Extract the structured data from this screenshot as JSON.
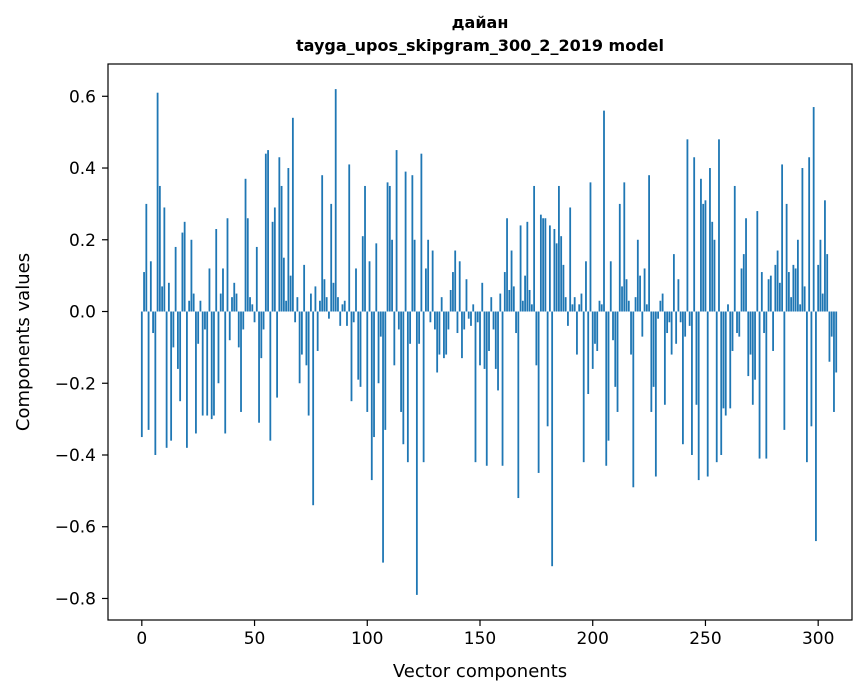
{
  "chart_data": {
    "type": "bar",
    "title_line1": "дайан",
    "title_line2": "tayga_upos_skipgram_300_2_2019 model",
    "xlabel": "Vector components",
    "ylabel": "Components values",
    "xlim": [
      -15,
      315
    ],
    "ylim": [
      -0.86,
      0.69
    ],
    "xticks": [
      0,
      50,
      100,
      150,
      200,
      250,
      300
    ],
    "xtick_labels": [
      "0",
      "50",
      "100",
      "150",
      "200",
      "250",
      "300"
    ],
    "yticks": [
      0.6,
      0.4,
      0.2,
      0.0,
      -0.2,
      -0.4,
      -0.6,
      -0.8
    ],
    "ytick_labels": [
      "0.6",
      "0.4",
      "0.2",
      "0.0",
      "−0.2",
      "−0.4",
      "−0.6",
      "−0.8"
    ],
    "bar_color": "#1f77b4",
    "values": [
      -0.35,
      0.11,
      0.3,
      -0.33,
      0.14,
      -0.06,
      -0.4,
      0.61,
      0.35,
      0.07,
      0.29,
      -0.38,
      0.08,
      -0.36,
      -0.1,
      0.18,
      -0.16,
      -0.25,
      0.22,
      0.25,
      -0.38,
      0.03,
      0.2,
      0.05,
      -0.34,
      -0.09,
      0.03,
      -0.29,
      -0.05,
      -0.29,
      0.12,
      -0.3,
      -0.29,
      0.23,
      -0.2,
      0.05,
      0.12,
      -0.34,
      0.26,
      -0.08,
      0.04,
      0.08,
      0.05,
      -0.1,
      -0.28,
      -0.05,
      0.37,
      0.26,
      0.04,
      0.02,
      -0.03,
      0.18,
      -0.31,
      -0.13,
      -0.05,
      0.44,
      0.45,
      -0.36,
      0.25,
      0.29,
      -0.24,
      0.43,
      0.35,
      0.15,
      0.03,
      0.4,
      0.1,
      0.54,
      -0.03,
      0.04,
      -0.2,
      -0.12,
      0.13,
      -0.15,
      -0.29,
      0.05,
      -0.54,
      0.07,
      -0.11,
      0.03,
      0.38,
      0.09,
      0.04,
      -0.02,
      0.3,
      0.08,
      0.62,
      0.04,
      -0.04,
      0.02,
      0.03,
      -0.04,
      0.41,
      -0.25,
      -0.03,
      0.12,
      -0.19,
      -0.21,
      0.21,
      0.35,
      -0.28,
      0.14,
      -0.47,
      -0.35,
      0.19,
      -0.2,
      -0.07,
      -0.7,
      -0.33,
      0.36,
      0.35,
      0.2,
      -0.15,
      0.45,
      -0.05,
      -0.28,
      -0.37,
      0.39,
      -0.42,
      -0.09,
      0.38,
      0.2,
      -0.79,
      -0.09,
      0.44,
      -0.42,
      0.12,
      0.2,
      -0.03,
      0.17,
      -0.05,
      -0.17,
      -0.12,
      0.04,
      -0.13,
      -0.12,
      -0.05,
      0.06,
      0.11,
      0.17,
      -0.06,
      0.14,
      -0.13,
      -0.05,
      0.09,
      -0.02,
      -0.04,
      0.02,
      -0.42,
      -0.03,
      -0.15,
      0.08,
      -0.16,
      -0.43,
      -0.11,
      0.04,
      -0.05,
      -0.16,
      -0.22,
      0.05,
      -0.43,
      0.11,
      0.26,
      0.06,
      0.17,
      0.07,
      -0.06,
      -0.52,
      0.24,
      0.03,
      0.1,
      0.25,
      0.06,
      0.02,
      0.35,
      -0.15,
      -0.45,
      0.27,
      0.26,
      0.26,
      -0.32,
      0.24,
      -0.71,
      0.23,
      0.19,
      0.35,
      0.21,
      0.13,
      0.04,
      -0.04,
      0.29,
      0.02,
      0.04,
      -0.12,
      0.02,
      0.05,
      -0.42,
      0.14,
      -0.23,
      0.36,
      -0.16,
      -0.09,
      -0.11,
      0.03,
      0.02,
      0.56,
      -0.43,
      -0.36,
      0.14,
      -0.08,
      -0.21,
      -0.28,
      0.3,
      0.07,
      0.36,
      0.09,
      0.03,
      -0.12,
      -0.49,
      0.04,
      0.2,
      0.1,
      -0.07,
      0.12,
      0.02,
      0.38,
      -0.28,
      -0.21,
      -0.46,
      -0.02,
      0.03,
      0.05,
      -0.26,
      -0.06,
      -0.03,
      -0.12,
      0.16,
      -0.09,
      0.09,
      -0.03,
      -0.37,
      -0.07,
      0.48,
      -0.04,
      -0.4,
      0.43,
      -0.26,
      -0.47,
      0.37,
      0.3,
      0.31,
      -0.46,
      0.4,
      0.25,
      0.2,
      -0.42,
      0.48,
      -0.4,
      -0.27,
      -0.29,
      0.02,
      -0.27,
      -0.11,
      0.35,
      -0.06,
      -0.07,
      0.12,
      0.16,
      0.26,
      -0.18,
      -0.12,
      -0.26,
      -0.19,
      0.28,
      -0.41,
      0.11,
      -0.06,
      -0.41,
      0.09,
      0.1,
      -0.11,
      0.13,
      0.17,
      0.08,
      0.41,
      -0.33,
      0.3,
      0.11,
      0.04,
      0.13,
      0.12,
      0.2,
      0.02,
      0.4,
      0.07,
      -0.42,
      0.43,
      -0.32,
      0.57,
      -0.64,
      0.13,
      0.2,
      0.05,
      0.31,
      0.16,
      -0.14,
      -0.07,
      -0.28,
      -0.17
    ]
  }
}
